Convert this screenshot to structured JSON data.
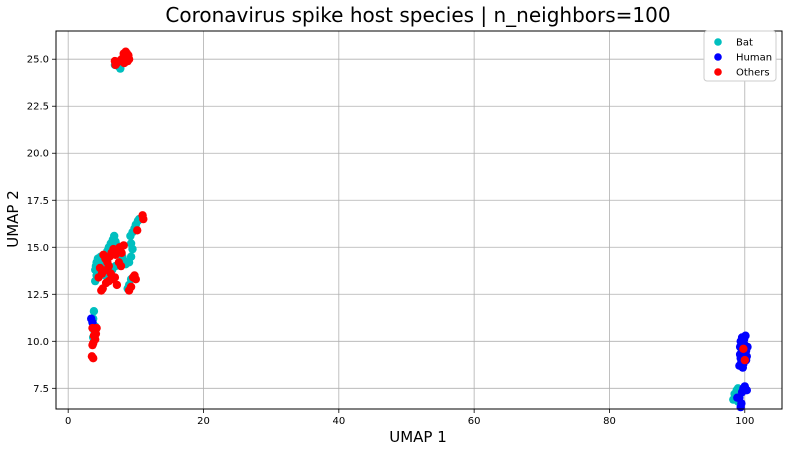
{
  "chart_data": {
    "type": "scatter",
    "title": "Coronavirus spike host species | n_neighbors=100",
    "xlabel": "UMAP 1",
    "ylabel": "UMAP 2",
    "xlim": [
      -1.8,
      105.5
    ],
    "ylim": [
      6.4,
      26.5
    ],
    "xticks": [
      0,
      20,
      40,
      60,
      80,
      100
    ],
    "yticks": [
      7.5,
      10.0,
      12.5,
      15.0,
      17.5,
      20.0,
      22.5,
      25.0
    ],
    "ytick_labels": [
      "7.5",
      "10.0",
      "12.5",
      "15.0",
      "17.5",
      "20.0",
      "22.5",
      "25.0"
    ],
    "grid": true,
    "legend_position": "top-right",
    "series": [
      {
        "name": "Bat",
        "color": "#00bfbf",
        "points": [
          [
            3.8,
            11.6
          ],
          [
            3.7,
            11.2
          ],
          [
            3.6,
            11.0
          ],
          [
            4.0,
            10.8
          ],
          [
            3.9,
            10.5
          ],
          [
            3.7,
            10.2
          ],
          [
            4.1,
            14.0
          ],
          [
            4.0,
            13.8
          ],
          [
            4.2,
            14.2
          ],
          [
            4.4,
            14.4
          ],
          [
            4.6,
            14.3
          ],
          [
            4.8,
            14.5
          ],
          [
            5.0,
            14.1
          ],
          [
            5.2,
            13.9
          ],
          [
            4.5,
            13.7
          ],
          [
            4.3,
            13.6
          ],
          [
            5.5,
            14.6
          ],
          [
            5.8,
            14.8
          ],
          [
            6.0,
            15.0
          ],
          [
            6.3,
            15.2
          ],
          [
            6.6,
            15.4
          ],
          [
            6.8,
            15.6
          ],
          [
            7.0,
            15.3
          ],
          [
            7.2,
            15.1
          ],
          [
            7.5,
            14.9
          ],
          [
            7.8,
            14.7
          ],
          [
            8.0,
            14.5
          ],
          [
            8.2,
            14.3
          ],
          [
            8.5,
            14.1
          ],
          [
            7.0,
            14.0
          ],
          [
            6.5,
            13.8
          ],
          [
            6.0,
            13.6
          ],
          [
            5.5,
            13.5
          ],
          [
            9.2,
            15.6
          ],
          [
            9.5,
            15.8
          ],
          [
            9.8,
            16.0
          ],
          [
            10.0,
            16.2
          ],
          [
            10.3,
            16.4
          ],
          [
            10.5,
            16.5
          ],
          [
            9.3,
            15.2
          ],
          [
            9.5,
            14.9
          ],
          [
            9.3,
            14.5
          ],
          [
            9.0,
            14.2
          ],
          [
            9.3,
            13.3
          ],
          [
            9.0,
            13.0
          ],
          [
            8.8,
            12.8
          ],
          [
            4.0,
            13.2
          ],
          [
            4.2,
            13.5
          ],
          [
            7.5,
            24.6
          ],
          [
            6.9,
            24.7
          ],
          [
            8.0,
            24.8
          ],
          [
            8.3,
            25.2
          ],
          [
            7.7,
            24.5
          ],
          [
            98.5,
            7.2
          ],
          [
            98.8,
            7.4
          ],
          [
            99.0,
            7.5
          ],
          [
            98.3,
            6.9
          ],
          [
            98.6,
            7.0
          ],
          [
            99.2,
            7.1
          ],
          [
            99.0,
            6.8
          ]
        ]
      },
      {
        "name": "Human",
        "color": "#0000ff",
        "points": [
          [
            3.4,
            11.2
          ],
          [
            3.6,
            11.0
          ],
          [
            99.2,
            8.7
          ],
          [
            99.5,
            8.9
          ],
          [
            99.8,
            9.1
          ],
          [
            100.0,
            9.3
          ],
          [
            100.2,
            9.5
          ],
          [
            99.3,
            9.7
          ],
          [
            99.6,
            9.9
          ],
          [
            99.9,
            10.1
          ],
          [
            100.1,
            10.3
          ],
          [
            99.4,
            10.0
          ],
          [
            99.7,
            9.6
          ],
          [
            100.3,
            9.2
          ],
          [
            99.5,
            9.4
          ],
          [
            99.8,
            8.8
          ],
          [
            100.0,
            9.8
          ],
          [
            99.6,
            10.2
          ],
          [
            100.2,
            9.0
          ],
          [
            99.4,
            9.1
          ],
          [
            99.9,
            9.5
          ],
          [
            99.7,
            8.6
          ],
          [
            100.4,
            9.7
          ],
          [
            99.3,
            9.3
          ],
          [
            99.8,
            7.5
          ],
          [
            100.0,
            7.6
          ],
          [
            100.3,
            7.4
          ],
          [
            99.6,
            7.3
          ],
          [
            99.2,
            7.0
          ],
          [
            99.5,
            6.7
          ],
          [
            99.4,
            6.5
          ],
          [
            98.9,
            7.0
          ]
        ]
      },
      {
        "name": "Others",
        "color": "#ff0000",
        "points": [
          [
            8.5,
            25.4
          ],
          [
            8.7,
            25.3
          ],
          [
            8.9,
            25.2
          ],
          [
            8.6,
            25.0
          ],
          [
            8.8,
            24.9
          ],
          [
            8.3,
            24.8
          ],
          [
            7.9,
            25.0
          ],
          [
            7.6,
            24.9
          ],
          [
            7.2,
            24.8
          ],
          [
            6.9,
            24.9
          ],
          [
            8.2,
            25.3
          ],
          [
            9.0,
            25.0
          ],
          [
            7.0,
            24.7
          ],
          [
            8.4,
            25.1
          ],
          [
            5.2,
            14.6
          ],
          [
            5.5,
            14.4
          ],
          [
            5.8,
            14.2
          ],
          [
            6.1,
            14.5
          ],
          [
            6.4,
            14.7
          ],
          [
            6.7,
            14.9
          ],
          [
            7.0,
            14.6
          ],
          [
            7.3,
            14.8
          ],
          [
            7.6,
            15.0
          ],
          [
            7.9,
            14.7
          ],
          [
            8.2,
            15.1
          ],
          [
            6.0,
            14.0
          ],
          [
            5.7,
            13.8
          ],
          [
            6.3,
            13.6
          ],
          [
            6.6,
            13.3
          ],
          [
            6.0,
            13.2
          ],
          [
            5.6,
            13.1
          ],
          [
            6.9,
            13.4
          ],
          [
            7.2,
            13.0
          ],
          [
            5.0,
            13.6
          ],
          [
            4.7,
            13.9
          ],
          [
            4.5,
            13.4
          ],
          [
            5.1,
            12.8
          ],
          [
            4.9,
            12.7
          ],
          [
            9.0,
            12.7
          ],
          [
            9.3,
            12.9
          ],
          [
            9.6,
            13.4
          ],
          [
            9.8,
            13.5
          ],
          [
            10.0,
            13.3
          ],
          [
            10.2,
            15.9
          ],
          [
            11.0,
            16.7
          ],
          [
            11.1,
            16.5
          ],
          [
            7.5,
            14.2
          ],
          [
            7.8,
            14.0
          ],
          [
            3.6,
            10.7
          ],
          [
            3.9,
            10.6
          ],
          [
            4.1,
            10.4
          ],
          [
            3.8,
            10.3
          ],
          [
            4.0,
            10.1
          ],
          [
            3.7,
            9.9
          ],
          [
            3.6,
            9.8
          ],
          [
            3.5,
            9.2
          ],
          [
            3.7,
            9.1
          ],
          [
            4.2,
            10.7
          ],
          [
            99.8,
            9.6
          ],
          [
            100.0,
            9.0
          ]
        ]
      }
    ]
  }
}
